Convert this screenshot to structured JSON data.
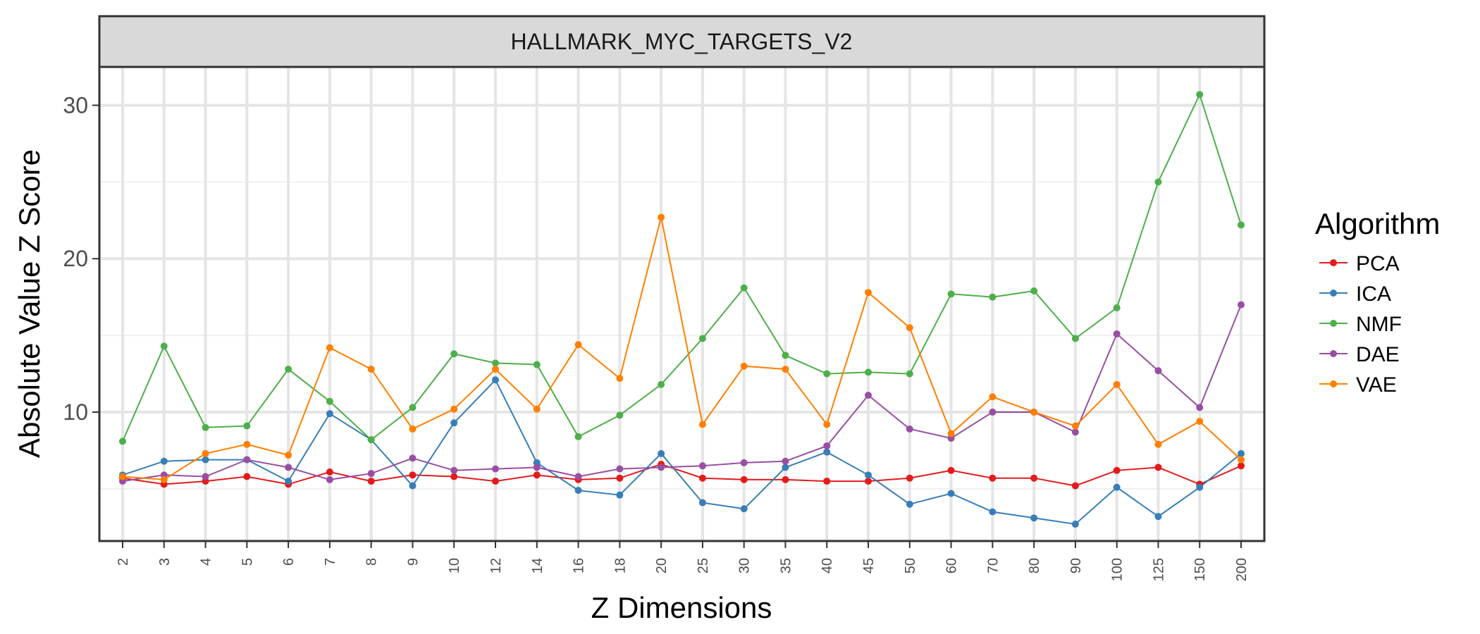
{
  "chart_data": {
    "type": "line",
    "title": "HALLMARK_MYC_TARGETS_V2",
    "xlabel": "Z Dimensions",
    "ylabel": "Absolute Value Z Score",
    "categories": [
      "2",
      "3",
      "4",
      "5",
      "6",
      "7",
      "8",
      "9",
      "10",
      "12",
      "14",
      "16",
      "18",
      "20",
      "25",
      "30",
      "35",
      "40",
      "45",
      "50",
      "60",
      "70",
      "80",
      "90",
      "100",
      "125",
      "150",
      "200"
    ],
    "ylim": [
      1.6,
      32.5
    ],
    "yticks": [
      10,
      20,
      30
    ],
    "grid": true,
    "legend": {
      "title": "Algorithm",
      "position": "right"
    },
    "series": [
      {
        "name": "PCA",
        "color": "#e41a1c",
        "values": [
          5.7,
          5.3,
          5.5,
          5.8,
          5.3,
          6.1,
          5.5,
          5.9,
          5.8,
          5.5,
          5.9,
          5.6,
          5.7,
          6.6,
          5.7,
          5.6,
          5.6,
          5.5,
          5.5,
          5.7,
          6.2,
          5.7,
          5.7,
          5.2,
          6.2,
          6.4,
          5.3,
          6.5
        ]
      },
      {
        "name": "ICA",
        "color": "#377eb8",
        "values": [
          5.9,
          6.8,
          6.9,
          6.9,
          5.5,
          9.9,
          8.2,
          5.2,
          9.3,
          12.1,
          6.7,
          4.9,
          4.6,
          7.3,
          4.1,
          3.7,
          6.4,
          7.4,
          5.9,
          4.0,
          4.7,
          3.5,
          3.1,
          2.7,
          5.1,
          3.2,
          5.1,
          7.3
        ]
      },
      {
        "name": "NMF",
        "color": "#4daf4a",
        "values": [
          8.1,
          14.3,
          9.0,
          9.1,
          12.8,
          10.7,
          8.2,
          10.3,
          13.8,
          13.2,
          13.1,
          8.4,
          9.8,
          11.8,
          14.8,
          18.1,
          13.7,
          12.5,
          12.6,
          12.5,
          17.7,
          17.5,
          17.9,
          14.8,
          16.8,
          25.0,
          30.7,
          22.2
        ]
      },
      {
        "name": "DAE",
        "color": "#984ea3",
        "values": [
          5.5,
          5.9,
          5.8,
          6.9,
          6.4,
          5.6,
          6.0,
          7.0,
          6.2,
          6.3,
          6.4,
          5.8,
          6.3,
          6.4,
          6.5,
          6.7,
          6.8,
          7.8,
          11.1,
          8.9,
          8.3,
          10.0,
          10.0,
          8.7,
          15.1,
          12.7,
          10.3,
          17.0
        ]
      },
      {
        "name": "VAE",
        "color": "#ff7f00",
        "values": [
          5.8,
          5.6,
          7.3,
          7.9,
          7.2,
          14.2,
          12.8,
          8.9,
          10.2,
          12.8,
          10.2,
          14.4,
          12.2,
          22.7,
          9.2,
          13.0,
          12.8,
          9.2,
          17.8,
          15.5,
          8.6,
          11.0,
          10.0,
          9.1,
          11.8,
          7.9,
          9.4,
          6.9
        ]
      }
    ]
  }
}
